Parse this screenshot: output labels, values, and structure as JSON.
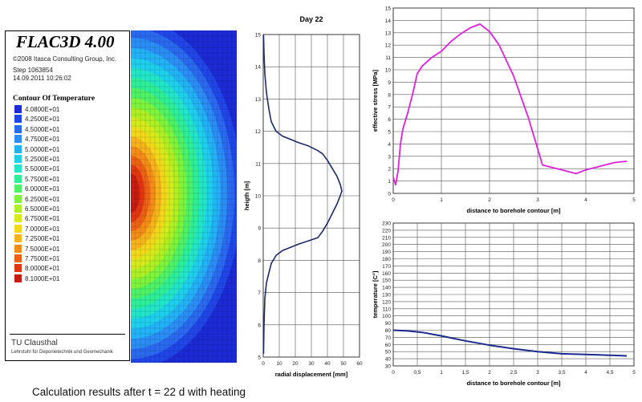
{
  "flac_panel": {
    "title": "FLAC3D 4.00",
    "copyright": "©2008 Itasca Consulting Group, Inc.",
    "step": "Step 1063854",
    "datetime": "14.09.2011 10:26:02",
    "contour_title": "Contour Of Temperature",
    "legend": [
      {
        "label": "4.0800E+01",
        "color": "#1c2bd6"
      },
      {
        "label": "4.2500E+01",
        "color": "#2046e8"
      },
      {
        "label": "4.5000E+01",
        "color": "#2a6af0"
      },
      {
        "label": "4.7500E+01",
        "color": "#2b8ef5"
      },
      {
        "label": "5.0000E+01",
        "color": "#22b2f6"
      },
      {
        "label": "5.2500E+01",
        "color": "#1fd0ec"
      },
      {
        "label": "5.5000E+01",
        "color": "#22e6c8"
      },
      {
        "label": "5.7500E+01",
        "color": "#2eef98"
      },
      {
        "label": "6.0000E+01",
        "color": "#4ef266"
      },
      {
        "label": "6.2500E+01",
        "color": "#7ef43c"
      },
      {
        "label": "6.5000E+01",
        "color": "#aef024"
      },
      {
        "label": "6.7500E+01",
        "color": "#d6ea1c"
      },
      {
        "label": "7.0000E+01",
        "color": "#f2d81a"
      },
      {
        "label": "7.2500E+01",
        "color": "#f6b41a"
      },
      {
        "label": "7.5000E+01",
        "color": "#f48c18"
      },
      {
        "label": "7.7500E+01",
        "color": "#ee6216"
      },
      {
        "label": "8.0000E+01",
        "color": "#e23612"
      },
      {
        "label": "8.1000E+01",
        "color": "#c81c10"
      }
    ],
    "org": "TU Clausthal",
    "institute": "Lehrstuhl für Deponietechnik und Geomechanik"
  },
  "caption": "Calculation results after t = 22 d with heating",
  "chart_data": [
    {
      "type": "line",
      "title": "Day 22",
      "xlabel": "radial displacement [mm]",
      "ylabel": "heigth [m]",
      "xlim": [
        0,
        60
      ],
      "ylim": [
        5,
        15
      ],
      "x_ticks": [
        "0",
        "10",
        "20",
        "30",
        "40",
        "50",
        "60"
      ],
      "y_ticks": [
        "5",
        "6",
        "7",
        "8",
        "9",
        "10",
        "11",
        "12",
        "13",
        "14",
        "15"
      ],
      "grid": true,
      "color": "#1a2a6c",
      "series": [
        {
          "x": [
            0.2,
            0.5,
            1,
            2,
            3.5,
            5,
            8,
            12,
            17,
            22,
            28,
            34,
            37,
            40,
            43,
            46,
            48,
            49,
            48,
            46,
            43,
            40,
            37,
            34,
            28,
            22,
            17,
            12,
            8,
            5,
            3.5,
            2,
            1,
            0.5,
            0.2
          ],
          "y": [
            5.1,
            6,
            6.8,
            7.3,
            7.6,
            7.9,
            8.15,
            8.3,
            8.4,
            8.5,
            8.6,
            8.7,
            8.9,
            9.15,
            9.45,
            9.75,
            10.0,
            10.15,
            10.35,
            10.6,
            10.85,
            11.1,
            11.3,
            11.4,
            11.55,
            11.65,
            11.75,
            11.85,
            12.0,
            12.3,
            12.7,
            13.2,
            13.8,
            14.4,
            15
          ]
        }
      ]
    },
    {
      "type": "line",
      "title": "",
      "xlabel": "distance to borehole contour [m]",
      "ylabel": "effective stress [MPa]",
      "xlim": [
        0,
        5
      ],
      "ylim": [
        0,
        15
      ],
      "x_ticks": [
        "0",
        "1",
        "2",
        "3",
        "4",
        "5"
      ],
      "y_ticks": [
        "0",
        "1",
        "2",
        "3",
        "4",
        "5",
        "6",
        "7",
        "8",
        "9",
        "10",
        "11",
        "12",
        "13",
        "14",
        "15"
      ],
      "grid": true,
      "color": "#e020e0",
      "series": [
        {
          "x": [
            0,
            0.05,
            0.1,
            0.15,
            0.2,
            0.3,
            0.4,
            0.5,
            0.6,
            0.8,
            1.0,
            1.2,
            1.4,
            1.6,
            1.8,
            2.0,
            2.2,
            2.5,
            2.8,
            3.1,
            3.5,
            3.8,
            4.0,
            4.3,
            4.6,
            4.85
          ],
          "y": [
            1.3,
            0.7,
            1.8,
            4.0,
            5.2,
            6.5,
            8.0,
            9.7,
            10.3,
            11.0,
            11.5,
            12.3,
            12.9,
            13.4,
            13.7,
            13.1,
            12.0,
            9.5,
            6.2,
            2.3,
            1.9,
            1.6,
            1.9,
            2.2,
            2.5,
            2.6
          ]
        }
      ]
    },
    {
      "type": "line",
      "title": "",
      "xlabel": "distance to borehole contour [m]",
      "ylabel": "temperature [C°]",
      "xlim": [
        0,
        5
      ],
      "ylim": [
        30,
        230
      ],
      "x_ticks": [
        "0",
        "0,5",
        "1",
        "1,5",
        "2",
        "2,5",
        "3",
        "3,5",
        "4",
        "4,5",
        "5"
      ],
      "y_ticks": [
        "30",
        "40",
        "50",
        "60",
        "70",
        "80",
        "90",
        "100",
        "110",
        "120",
        "130",
        "140",
        "150",
        "160",
        "170",
        "180",
        "190",
        "200",
        "210",
        "220",
        "230"
      ],
      "grid": true,
      "color": "#1a2a90",
      "series": [
        {
          "x": [
            0,
            0.3,
            0.6,
            1.0,
            1.5,
            2.0,
            2.5,
            3.0,
            3.5,
            4.0,
            4.5,
            4.85
          ],
          "y": [
            80,
            79,
            77,
            72,
            65,
            59,
            54,
            50,
            47,
            46,
            45,
            44
          ]
        }
      ]
    }
  ]
}
